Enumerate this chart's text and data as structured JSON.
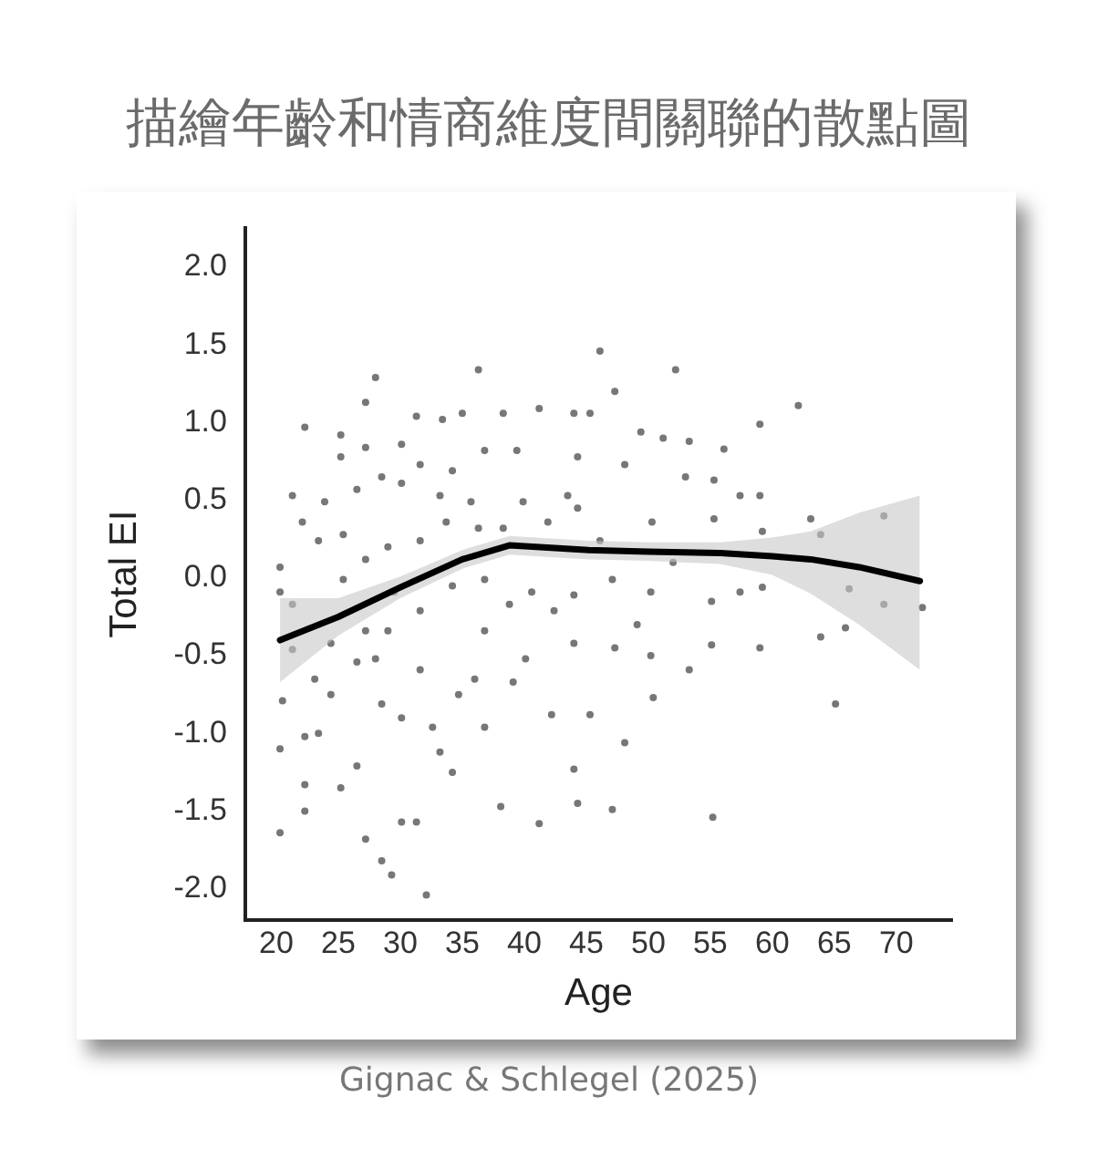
{
  "chart_data": {
    "type": "scatter",
    "title": "描繪年齡和情商維度間關聯的散點圖",
    "xlabel": "Age",
    "ylabel": "Total EI",
    "annotations": [
      "Gignac & Schlegel (2025)"
    ],
    "xlim": [
      17.5,
      74.5
    ],
    "ylim": [
      -2.2,
      2.25
    ],
    "xticks": [
      20,
      25,
      30,
      35,
      40,
      45,
      50,
      55,
      60,
      65,
      70
    ],
    "yticks": [
      {
        "value": 2,
        "label": "2.0"
      },
      {
        "value": 1.5,
        "label": "1.5"
      },
      {
        "value": 1,
        "label": "1.0"
      },
      {
        "value": 0.5,
        "label": "0.5"
      },
      {
        "value": 0,
        "label": "0.0"
      },
      {
        "value": -0.5,
        "label": "-0.5"
      },
      {
        "value": -1,
        "label": "-1.0"
      },
      {
        "value": -1.5,
        "label": "-1.5"
      },
      {
        "value": -2,
        "label": "-2.0"
      }
    ],
    "grid": false,
    "legend": false,
    "series": [
      {
        "color": "#777777",
        "marker": "circle",
        "x": [
          28.0,
          36.3,
          27.2,
          22.3,
          20.3,
          20.3,
          20.5,
          20.3,
          20.3,
          22.3,
          22.3,
          25.2,
          26.5,
          27.2,
          28.5,
          29.3,
          32.1,
          30.1,
          31.3,
          34.2,
          33.2,
          32.6,
          30.1,
          28.5,
          24.4,
          23.1,
          23.4,
          22.3,
          38.1,
          41.2,
          44.0,
          44.3,
          42.2,
          40.1,
          39.1,
          36.0,
          36.8,
          34.7,
          31.6,
          26.5,
          28.0,
          24.4,
          21.3,
          21.3,
          22.1,
          23.9,
          25.2,
          25.2,
          27.2,
          30.1,
          31.3,
          33.4,
          35.0,
          38.3,
          41.2,
          44.0,
          44.3,
          39.4,
          36.8,
          34.2,
          31.6,
          28.5,
          26.5,
          30.1,
          33.2,
          35.7,
          39.9,
          43.5,
          44.3,
          23.4,
          25.4,
          27.2,
          29.0,
          31.6,
          33.7,
          36.3,
          38.3,
          41.9,
          25.4,
          29.5,
          31.6,
          34.2,
          36.8,
          38.8,
          40.6,
          42.4,
          44.0,
          44.0,
          36.8,
          29.0,
          27.2,
          21.3,
          46.1,
          52.2,
          47.3,
          62.1,
          59.0,
          45.3,
          49.4,
          51.2,
          53.3,
          56.1,
          48.1,
          53.0,
          55.3,
          57.4,
          59.0,
          63.1,
          69.0,
          55.3,
          50.3,
          59.2,
          63.9,
          46.1,
          52.0,
          47.1,
          50.2,
          55.1,
          57.4,
          59.2,
          66.2,
          69.0,
          72.1,
          65.9,
          63.9,
          59.0,
          55.1,
          53.3,
          50.2,
          47.3,
          49.1,
          50.4,
          65.1,
          45.3,
          48.1,
          47.1,
          55.2
        ],
        "values": [
          1.29,
          1.34,
          1.13,
          0.97,
          0.07,
          -0.09,
          -0.79,
          -1.1,
          -1.64,
          -1.33,
          -1.5,
          -1.35,
          -1.21,
          -1.68,
          -1.82,
          -1.91,
          -2.04,
          -1.57,
          -1.57,
          -1.25,
          -1.12,
          -0.96,
          -0.9,
          -0.81,
          -0.75,
          -0.65,
          -1.0,
          -1.02,
          -1.47,
          -1.58,
          -1.23,
          -1.45,
          -0.88,
          -0.52,
          -0.67,
          -0.65,
          -0.96,
          -0.75,
          -0.59,
          -0.54,
          -0.52,
          -0.42,
          -0.46,
          0.53,
          0.36,
          0.49,
          0.78,
          0.92,
          0.84,
          0.86,
          1.04,
          1.02,
          1.06,
          1.06,
          1.09,
          1.06,
          0.78,
          0.82,
          0.82,
          0.69,
          0.73,
          0.65,
          0.57,
          0.61,
          0.53,
          0.49,
          0.49,
          0.53,
          0.45,
          0.24,
          0.28,
          0.12,
          0.2,
          0.24,
          0.36,
          0.32,
          0.32,
          0.36,
          -0.01,
          -0.09,
          -0.21,
          -0.05,
          -0.01,
          -0.17,
          -0.09,
          -0.21,
          -0.11,
          -0.42,
          -0.34,
          -0.34,
          -0.34,
          -0.17,
          1.46,
          1.34,
          1.2,
          1.11,
          0.99,
          1.06,
          0.94,
          0.9,
          0.88,
          0.83,
          0.73,
          0.65,
          0.63,
          0.53,
          0.53,
          0.38,
          0.4,
          0.38,
          0.36,
          0.3,
          0.28,
          0.24,
          0.1,
          -0.01,
          -0.09,
          -0.15,
          -0.09,
          -0.06,
          -0.07,
          -0.17,
          -0.19,
          -0.32,
          -0.38,
          -0.45,
          -0.43,
          -0.59,
          -0.5,
          -0.45,
          -0.3,
          -0.77,
          -0.81,
          -0.88,
          -1.06,
          -1.49,
          -1.54
        ]
      },
      {
        "type": "line",
        "color": "#000000",
        "marker": "none",
        "line_style": "solid",
        "x": [
          20.3,
          25,
          30,
          35,
          38.8,
          45.2,
          50,
          55.8,
          60,
          63.1,
          67,
          71.9
        ],
        "values": [
          -0.4,
          -0.25,
          -0.06,
          0.12,
          0.21,
          0.18,
          0.17,
          0.16,
          0.14,
          0.12,
          0.07,
          -0.02
        ],
        "lower": [
          -0.67,
          -0.37,
          -0.13,
          0.06,
          0.15,
          0.12,
          0.11,
          0.09,
          0.02,
          -0.1,
          -0.3,
          -0.59
        ],
        "upper": [
          -0.13,
          -0.13,
          0.01,
          0.18,
          0.27,
          0.24,
          0.23,
          0.23,
          0.26,
          0.3,
          0.42,
          0.53
        ]
      }
    ]
  }
}
